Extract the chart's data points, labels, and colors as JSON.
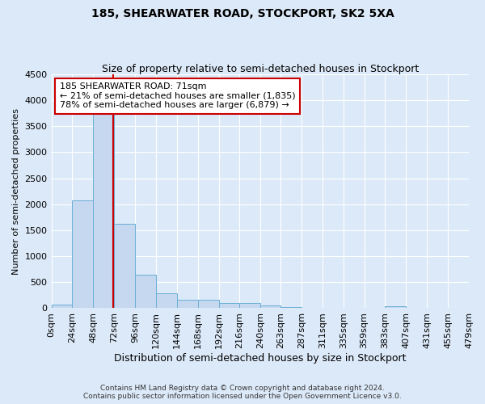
{
  "title": "185, SHEARWATER ROAD, STOCKPORT, SK2 5XA",
  "subtitle": "Size of property relative to semi-detached houses in Stockport",
  "xlabel": "Distribution of semi-detached houses by size in Stockport",
  "ylabel": "Number of semi-detached properties",
  "footer_line1": "Contains HM Land Registry data © Crown copyright and database right 2024.",
  "footer_line2": "Contains public sector information licensed under the Open Government Licence v3.0.",
  "annotation_line1": "185 SHEARWATER ROAD: 71sqm",
  "annotation_line2": "← 21% of semi-detached houses are smaller (1,835)",
  "annotation_line3": "78% of semi-detached houses are larger (6,879) →",
  "property_size_sqm": 71,
  "bin_edges": [
    0,
    24,
    48,
    72,
    96,
    120,
    144,
    168,
    192,
    216,
    240,
    263,
    287,
    311,
    335,
    359,
    383,
    407,
    431,
    455,
    479
  ],
  "bar_values": [
    75,
    2075,
    3750,
    1620,
    640,
    290,
    155,
    155,
    100,
    95,
    55,
    30,
    10,
    5,
    0,
    0,
    45,
    0,
    0,
    0
  ],
  "bar_color": "#c5d8f0",
  "bar_edge_color": "#6aaed6",
  "vline_color": "#cc0000",
  "vline_x": 71,
  "annotation_box_edge_color": "#cc0000",
  "annotation_box_face_color": "#ffffff",
  "bg_color": "#dce9f8",
  "plot_bg_color": "#dce9f8",
  "ylim": [
    0,
    4500
  ],
  "yticks": [
    0,
    500,
    1000,
    1500,
    2000,
    2500,
    3000,
    3500,
    4000,
    4500
  ],
  "title_fontsize": 10,
  "subtitle_fontsize": 9,
  "xlabel_fontsize": 9,
  "ylabel_fontsize": 8,
  "tick_fontsize": 8,
  "annotation_fontsize": 8,
  "footer_fontsize": 6.5
}
